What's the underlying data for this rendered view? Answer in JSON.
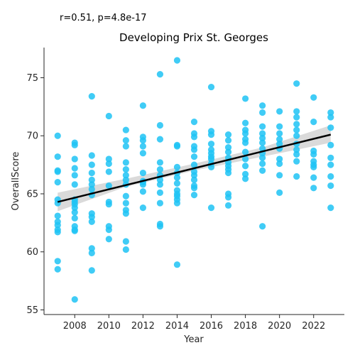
{
  "annotation": "r=0.51, p=4.8e-17",
  "chart_data": {
    "type": "scatter",
    "title": "Developing Prix St. Georges",
    "xlabel": "Year",
    "ylabel": "OverallScore",
    "xlim": [
      2006.2,
      2023.8
    ],
    "ylim": [
      54.6,
      77.6
    ],
    "xticks": [
      2008,
      2010,
      2012,
      2014,
      2016,
      2018,
      2020,
      2022
    ],
    "yticks": [
      55,
      60,
      65,
      70,
      75
    ],
    "grid": false,
    "point_color": "#1ec3f5",
    "line_color": "#000000",
    "band_color": "#bbbbbb",
    "points": [
      [
        2007,
        70.0
      ],
      [
        2007,
        68.2
      ],
      [
        2007,
        67.0
      ],
      [
        2007,
        66.9
      ],
      [
        2007,
        66.0
      ],
      [
        2007,
        64.5
      ],
      [
        2007,
        64.2
      ],
      [
        2007,
        63.1
      ],
      [
        2007,
        62.6
      ],
      [
        2007,
        62.3
      ],
      [
        2007,
        61.9
      ],
      [
        2007,
        61.7
      ],
      [
        2007,
        59.2
      ],
      [
        2007,
        58.5
      ],
      [
        2008,
        69.4
      ],
      [
        2008,
        69.2
      ],
      [
        2008,
        68.0
      ],
      [
        2008,
        67.2
      ],
      [
        2008,
        66.6
      ],
      [
        2008,
        65.8
      ],
      [
        2008,
        64.5
      ],
      [
        2008,
        64.3
      ],
      [
        2008,
        64.1
      ],
      [
        2008,
        63.8
      ],
      [
        2008,
        63.4
      ],
      [
        2008,
        62.9
      ],
      [
        2008,
        62.2
      ],
      [
        2008,
        61.9
      ],
      [
        2008,
        61.8
      ],
      [
        2008,
        55.9
      ],
      [
        2009,
        73.4
      ],
      [
        2009,
        68.3
      ],
      [
        2009,
        67.5
      ],
      [
        2009,
        66.8
      ],
      [
        2009,
        66.2
      ],
      [
        2009,
        65.8
      ],
      [
        2009,
        65.4
      ],
      [
        2009,
        64.9
      ],
      [
        2009,
        63.3
      ],
      [
        2009,
        63.0
      ],
      [
        2009,
        62.6
      ],
      [
        2009,
        60.3
      ],
      [
        2009,
        59.9
      ],
      [
        2009,
        58.4
      ],
      [
        2010,
        71.7
      ],
      [
        2010,
        68.0
      ],
      [
        2010,
        67.6
      ],
      [
        2010,
        66.9
      ],
      [
        2010,
        65.7
      ],
      [
        2010,
        64.3
      ],
      [
        2010,
        64.1
      ],
      [
        2010,
        62.2
      ],
      [
        2010,
        61.9
      ],
      [
        2010,
        61.1
      ],
      [
        2011,
        70.5
      ],
      [
        2011,
        69.6
      ],
      [
        2011,
        69.1
      ],
      [
        2011,
        67.7
      ],
      [
        2011,
        67.1
      ],
      [
        2011,
        66.6
      ],
      [
        2011,
        66.2
      ],
      [
        2011,
        65.8
      ],
      [
        2011,
        64.8
      ],
      [
        2011,
        64.2
      ],
      [
        2011,
        63.6
      ],
      [
        2011,
        63.3
      ],
      [
        2011,
        60.9
      ],
      [
        2011,
        60.2
      ],
      [
        2012,
        72.6
      ],
      [
        2012,
        69.9
      ],
      [
        2012,
        69.6
      ],
      [
        2012,
        69.1
      ],
      [
        2012,
        68.5
      ],
      [
        2012,
        66.8
      ],
      [
        2012,
        66.1
      ],
      [
        2012,
        66.0
      ],
      [
        2012,
        65.8
      ],
      [
        2012,
        65.2
      ],
      [
        2012,
        63.8
      ],
      [
        2013,
        75.3
      ],
      [
        2013,
        70.9
      ],
      [
        2013,
        69.7
      ],
      [
        2013,
        67.7
      ],
      [
        2013,
        67.1
      ],
      [
        2013,
        66.6
      ],
      [
        2013,
        66.2
      ],
      [
        2013,
        65.8
      ],
      [
        2013,
        65.1
      ],
      [
        2013,
        64.2
      ],
      [
        2013,
        62.4
      ],
      [
        2013,
        62.2
      ],
      [
        2014,
        76.5
      ],
      [
        2014,
        69.2
      ],
      [
        2014,
        69.1
      ],
      [
        2014,
        67.3
      ],
      [
        2014,
        66.8
      ],
      [
        2014,
        66.4
      ],
      [
        2014,
        65.9
      ],
      [
        2014,
        65.3
      ],
      [
        2014,
        65.0
      ],
      [
        2014,
        64.8
      ],
      [
        2014,
        64.5
      ],
      [
        2014,
        64.2
      ],
      [
        2014,
        58.9
      ],
      [
        2015,
        71.2
      ],
      [
        2015,
        70.2
      ],
      [
        2015,
        69.9
      ],
      [
        2015,
        69.1
      ],
      [
        2015,
        68.8
      ],
      [
        2015,
        68.2
      ],
      [
        2015,
        67.5
      ],
      [
        2015,
        66.9
      ],
      [
        2015,
        66.6
      ],
      [
        2015,
        66.2
      ],
      [
        2015,
        65.7
      ],
      [
        2015,
        65.5
      ],
      [
        2015,
        64.9
      ],
      [
        2016,
        74.2
      ],
      [
        2016,
        70.4
      ],
      [
        2016,
        70.1
      ],
      [
        2016,
        69.3
      ],
      [
        2016,
        68.8
      ],
      [
        2016,
        68.5
      ],
      [
        2016,
        68.2
      ],
      [
        2016,
        68.0
      ],
      [
        2016,
        67.6
      ],
      [
        2016,
        67.3
      ],
      [
        2016,
        63.8
      ],
      [
        2017,
        70.1
      ],
      [
        2017,
        69.6
      ],
      [
        2017,
        69.0
      ],
      [
        2017,
        68.6
      ],
      [
        2017,
        68.1
      ],
      [
        2017,
        67.7
      ],
      [
        2017,
        67.4
      ],
      [
        2017,
        67.1
      ],
      [
        2017,
        66.8
      ],
      [
        2017,
        65.0
      ],
      [
        2017,
        64.7
      ],
      [
        2017,
        64.0
      ],
      [
        2018,
        73.2
      ],
      [
        2018,
        71.1
      ],
      [
        2018,
        70.5
      ],
      [
        2018,
        70.2
      ],
      [
        2018,
        69.7
      ],
      [
        2018,
        69.4
      ],
      [
        2018,
        68.6
      ],
      [
        2018,
        68.0
      ],
      [
        2018,
        67.4
      ],
      [
        2018,
        66.7
      ],
      [
        2018,
        66.3
      ],
      [
        2019,
        72.6
      ],
      [
        2019,
        72.0
      ],
      [
        2019,
        70.8
      ],
      [
        2019,
        70.2
      ],
      [
        2019,
        69.8
      ],
      [
        2019,
        69.4
      ],
      [
        2019,
        68.9
      ],
      [
        2019,
        68.5
      ],
      [
        2019,
        68.1
      ],
      [
        2019,
        67.6
      ],
      [
        2019,
        67.0
      ],
      [
        2019,
        62.2
      ],
      [
        2020,
        72.1
      ],
      [
        2020,
        70.8
      ],
      [
        2020,
        70.2
      ],
      [
        2020,
        69.7
      ],
      [
        2020,
        69.3
      ],
      [
        2020,
        68.9
      ],
      [
        2020,
        68.0
      ],
      [
        2020,
        67.6
      ],
      [
        2020,
        66.6
      ],
      [
        2020,
        65.1
      ],
      [
        2021,
        74.5
      ],
      [
        2021,
        72.1
      ],
      [
        2021,
        71.6
      ],
      [
        2021,
        71.0
      ],
      [
        2021,
        70.5
      ],
      [
        2021,
        70.0
      ],
      [
        2021,
        69.3
      ],
      [
        2021,
        68.8
      ],
      [
        2021,
        68.4
      ],
      [
        2021,
        67.8
      ],
      [
        2021,
        66.5
      ],
      [
        2022,
        73.3
      ],
      [
        2022,
        71.2
      ],
      [
        2022,
        68.7
      ],
      [
        2022,
        68.4
      ],
      [
        2022,
        67.8
      ],
      [
        2022,
        67.5
      ],
      [
        2022,
        67.3
      ],
      [
        2022,
        66.4
      ],
      [
        2022,
        65.5
      ],
      [
        2023,
        72.0
      ],
      [
        2023,
        71.6
      ],
      [
        2023,
        70.7
      ],
      [
        2023,
        69.2
      ],
      [
        2023,
        68.1
      ],
      [
        2023,
        67.5
      ],
      [
        2023,
        66.5
      ],
      [
        2023,
        65.7
      ],
      [
        2023,
        63.8
      ]
    ],
    "regression": {
      "x": [
        2007,
        2023
      ],
      "y": [
        64.3,
        70.1
      ]
    },
    "confidence_band": {
      "x": [
        2007,
        2011,
        2015,
        2019,
        2023
      ],
      "lower": [
        63.5,
        65.6,
        67.0,
        68.2,
        69.4
      ],
      "upper": [
        65.1,
        66.3,
        67.6,
        69.0,
        70.9
      ]
    }
  }
}
